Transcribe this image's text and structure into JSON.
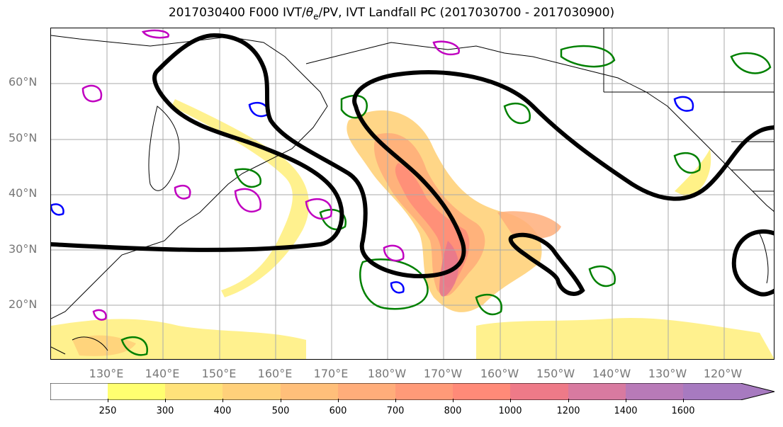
{
  "title": "2017030400 F000 IVT/θe/PV, IVT Landfall PC (2017030700 - 2017030900)",
  "title_parts": {
    "main": "2017030400 F000 IVT/",
    "theta": "θ",
    "sub": "e",
    "rest": "/PV, IVT Landfall PC (2017030700 - 2017030900)"
  },
  "map": {
    "lat_labels": [
      "60°N",
      "50°N",
      "40°N",
      "30°N",
      "20°N"
    ],
    "lon_labels": [
      "130°E",
      "140°E",
      "150°E",
      "160°E",
      "170°E",
      "180°W",
      "170°W",
      "160°W",
      "150°W",
      "140°W",
      "130°W",
      "120°W"
    ],
    "colors": {
      "theta_e": "#008000",
      "pv_pos": "#c000c0",
      "pv_neg": "#0000ff",
      "landfall_pc": "#000000",
      "coast": "#000000",
      "grid": "#aaaaaa"
    }
  },
  "colorbar": {
    "levels": [
      "250",
      "300",
      "400",
      "500",
      "600",
      "700",
      "800",
      "1000",
      "1200",
      "1400",
      "1600"
    ],
    "colors": [
      "#ffffff",
      "#ffff70",
      "#ffe27a",
      "#ffd07a",
      "#ffbf7a",
      "#ffad7a",
      "#ff9a78",
      "#ff8a78",
      "#ee7a88",
      "#d87aa0",
      "#b87ab8",
      "#a77ac0"
    ]
  }
}
